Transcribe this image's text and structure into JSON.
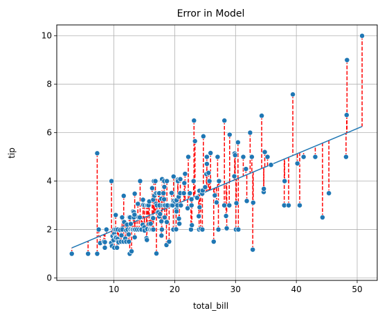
{
  "chart_data": {
    "type": "scatter",
    "title": "Error in Model",
    "xlabel": "total_bill",
    "ylabel": "tip",
    "xlim": [
      0.6,
      53.3
    ],
    "ylim": [
      -0.1,
      10.45
    ],
    "xticks": [
      10,
      20,
      30,
      40,
      50
    ],
    "yticks": [
      0,
      2,
      4,
      6,
      8,
      10
    ],
    "grid": true,
    "colors": {
      "points": "#1f77b4",
      "point_edge": "#ffffff",
      "residual": "#ff0000",
      "fit_line": "#1f77b4",
      "grid": "#b0b0b0"
    },
    "fit_line": {
      "intercept": 0.92,
      "slope": 0.105
    },
    "points": [
      [
        3.07,
        1.0
      ],
      [
        5.75,
        1.0
      ],
      [
        7.25,
        5.15
      ],
      [
        7.25,
        1.0
      ],
      [
        7.5,
        2.0
      ],
      [
        7.74,
        1.44
      ],
      [
        8.35,
        1.5
      ],
      [
        8.51,
        1.25
      ],
      [
        8.52,
        1.48
      ],
      [
        8.77,
        2.0
      ],
      [
        9.55,
        1.45
      ],
      [
        9.6,
        4.0
      ],
      [
        9.68,
        1.32
      ],
      [
        9.78,
        1.73
      ],
      [
        9.94,
        1.56
      ],
      [
        10.07,
        1.83
      ],
      [
        10.07,
        1.25
      ],
      [
        10.09,
        2.0
      ],
      [
        10.27,
        1.71
      ],
      [
        10.29,
        2.6
      ],
      [
        10.33,
        1.67
      ],
      [
        10.33,
        2.0
      ],
      [
        10.34,
        1.66
      ],
      [
        10.34,
        2.0
      ],
      [
        10.51,
        1.25
      ],
      [
        10.59,
        1.61
      ],
      [
        10.63,
        2.0
      ],
      [
        10.65,
        1.5
      ],
      [
        10.77,
        1.47
      ],
      [
        11.02,
        1.98
      ],
      [
        11.17,
        1.5
      ],
      [
        11.24,
        1.76
      ],
      [
        11.35,
        2.5
      ],
      [
        11.38,
        2.0
      ],
      [
        11.59,
        1.5
      ],
      [
        11.61,
        3.39
      ],
      [
        11.69,
        2.31
      ],
      [
        11.87,
        1.63
      ],
      [
        12.02,
        1.97
      ],
      [
        12.03,
        1.5
      ],
      [
        12.16,
        2.2
      ],
      [
        12.26,
        2.0
      ],
      [
        12.43,
        1.8
      ],
      [
        12.46,
        1.5
      ],
      [
        12.48,
        2.52
      ],
      [
        12.54,
        2.5
      ],
      [
        12.6,
        1.0
      ],
      [
        12.66,
        2.5
      ],
      [
        12.69,
        2.0
      ],
      [
        12.74,
        2.01
      ],
      [
        12.76,
        2.23
      ],
      [
        12.9,
        1.1
      ],
      [
        13.0,
        2.0
      ],
      [
        13.03,
        2.0
      ],
      [
        13.13,
        2.0
      ],
      [
        13.16,
        2.75
      ],
      [
        13.27,
        2.5
      ],
      [
        13.28,
        2.72
      ],
      [
        13.37,
        2.0
      ],
      [
        13.39,
        2.61
      ],
      [
        13.42,
        3.48
      ],
      [
        13.42,
        1.68
      ],
      [
        13.51,
        2.0
      ],
      [
        13.81,
        2.0
      ],
      [
        13.94,
        3.06
      ],
      [
        14.07,
        2.5
      ],
      [
        14.15,
        2.0
      ],
      [
        14.26,
        2.5
      ],
      [
        14.31,
        4.0
      ],
      [
        14.48,
        2.0
      ],
      [
        14.52,
        2.0
      ],
      [
        14.73,
        2.2
      ],
      [
        14.78,
        3.23
      ],
      [
        14.83,
        3.02
      ],
      [
        15.01,
        2.09
      ],
      [
        15.04,
        1.96
      ],
      [
        15.06,
        3.0
      ],
      [
        15.36,
        1.64
      ],
      [
        15.38,
        3.0
      ],
      [
        15.42,
        1.57
      ],
      [
        15.48,
        2.02
      ],
      [
        15.53,
        3.0
      ],
      [
        15.69,
        3.0
      ],
      [
        15.77,
        2.23
      ],
      [
        15.81,
        3.16
      ],
      [
        15.95,
        2.0
      ],
      [
        15.98,
        2.03
      ],
      [
        16.0,
        2.0
      ],
      [
        16.04,
        2.24
      ],
      [
        16.21,
        2.0
      ],
      [
        16.27,
        2.5
      ],
      [
        16.29,
        3.71
      ],
      [
        16.31,
        2.0
      ],
      [
        16.4,
        2.5
      ],
      [
        16.45,
        2.47
      ],
      [
        16.47,
        3.23
      ],
      [
        16.49,
        2.0
      ],
      [
        16.58,
        4.0
      ],
      [
        16.66,
        3.4
      ],
      [
        16.82,
        4.0
      ],
      [
        16.93,
        3.07
      ],
      [
        16.97,
        3.5
      ],
      [
        16.99,
        1.01
      ],
      [
        17.07,
        3.0
      ],
      [
        17.26,
        2.74
      ],
      [
        17.29,
        2.71
      ],
      [
        17.31,
        3.5
      ],
      [
        17.46,
        2.54
      ],
      [
        17.47,
        3.5
      ],
      [
        17.51,
        3.0
      ],
      [
        17.59,
        2.64
      ],
      [
        17.78,
        3.27
      ],
      [
        17.81,
        2.34
      ],
      [
        17.82,
        1.75
      ],
      [
        17.89,
        2.0
      ],
      [
        17.92,
        4.08
      ],
      [
        18.04,
        3.0
      ],
      [
        18.15,
        3.5
      ],
      [
        18.24,
        3.76
      ],
      [
        18.26,
        3.25
      ],
      [
        18.28,
        4.0
      ],
      [
        18.29,
        3.0
      ],
      [
        18.29,
        3.76
      ],
      [
        18.35,
        2.5
      ],
      [
        18.43,
        3.0
      ],
      [
        18.64,
        1.36
      ],
      [
        18.69,
        2.31
      ],
      [
        18.71,
        4.0
      ],
      [
        18.78,
        3.0
      ],
      [
        19.08,
        1.5
      ],
      [
        19.44,
        3.0
      ],
      [
        19.49,
        3.51
      ],
      [
        19.65,
        3.0
      ],
      [
        19.77,
        2.0
      ],
      [
        19.81,
        4.19
      ],
      [
        19.82,
        3.18
      ],
      [
        20.08,
        3.15
      ],
      [
        20.23,
        2.01
      ],
      [
        20.27,
        2.83
      ],
      [
        20.29,
        2.75
      ],
      [
        20.29,
        3.21
      ],
      [
        20.45,
        3.0
      ],
      [
        20.49,
        4.06
      ],
      [
        20.53,
        4.0
      ],
      [
        20.65,
        3.35
      ],
      [
        20.69,
        2.45
      ],
      [
        20.76,
        2.24
      ],
      [
        20.9,
        3.5
      ],
      [
        20.92,
        4.08
      ],
      [
        21.01,
        3.0
      ],
      [
        21.5,
        3.5
      ],
      [
        21.58,
        3.92
      ],
      [
        21.7,
        4.3
      ],
      [
        22.12,
        2.88
      ],
      [
        22.23,
        5.0
      ],
      [
        22.42,
        3.48
      ],
      [
        22.49,
        3.5
      ],
      [
        22.67,
        2.0
      ],
      [
        22.75,
        3.25
      ],
      [
        22.76,
        3.0
      ],
      [
        22.82,
        2.18
      ],
      [
        23.1,
        4.0
      ],
      [
        23.17,
        6.5
      ],
      [
        23.33,
        5.65
      ],
      [
        23.68,
        3.31
      ],
      [
        23.95,
        2.55
      ],
      [
        24.01,
        2.0
      ],
      [
        24.06,
        3.6
      ],
      [
        24.08,
        2.92
      ],
      [
        24.27,
        2.03
      ],
      [
        24.52,
        3.48
      ],
      [
        24.55,
        2.0
      ],
      [
        24.59,
        3.61
      ],
      [
        24.71,
        5.85
      ],
      [
        25.0,
        3.75
      ],
      [
        25.21,
        4.29
      ],
      [
        25.28,
        5.0
      ],
      [
        25.29,
        4.71
      ],
      [
        25.56,
        4.34
      ],
      [
        25.71,
        4.0
      ],
      [
        25.89,
        5.16
      ],
      [
        26.41,
        1.5
      ],
      [
        26.59,
        3.41
      ],
      [
        26.86,
        3.14
      ],
      [
        26.88,
        3.12
      ],
      [
        27.05,
        5.0
      ],
      [
        27.18,
        2.0
      ],
      [
        27.2,
        4.0
      ],
      [
        27.28,
        4.0
      ],
      [
        28.15,
        3.0
      ],
      [
        28.17,
        6.5
      ],
      [
        28.44,
        2.56
      ],
      [
        28.55,
        2.05
      ],
      [
        28.97,
        3.0
      ],
      [
        29.03,
        5.92
      ],
      [
        29.8,
        4.2
      ],
      [
        29.85,
        5.14
      ],
      [
        29.93,
        5.07
      ],
      [
        30.06,
        2.0
      ],
      [
        30.14,
        3.09
      ],
      [
        30.4,
        5.6
      ],
      [
        30.46,
        2.0
      ],
      [
        31.27,
        5.0
      ],
      [
        31.71,
        4.5
      ],
      [
        31.85,
        3.18
      ],
      [
        32.4,
        6.0
      ],
      [
        32.68,
        5.0
      ],
      [
        32.83,
        1.17
      ],
      [
        32.9,
        3.11
      ],
      [
        34.3,
        6.7
      ],
      [
        34.63,
        3.55
      ],
      [
        34.65,
        3.68
      ],
      [
        34.81,
        5.2
      ],
      [
        35.26,
        5.0
      ],
      [
        35.83,
        4.67
      ],
      [
        38.01,
        3.0
      ],
      [
        38.07,
        4.0
      ],
      [
        38.73,
        3.0
      ],
      [
        39.42,
        7.58
      ],
      [
        40.17,
        4.73
      ],
      [
        40.55,
        3.0
      ],
      [
        41.19,
        5.0
      ],
      [
        43.11,
        5.0
      ],
      [
        44.3,
        2.5
      ],
      [
        45.35,
        3.5
      ],
      [
        48.17,
        5.0
      ],
      [
        48.27,
        6.73
      ],
      [
        48.33,
        9.0
      ],
      [
        50.81,
        10.0
      ]
    ]
  }
}
